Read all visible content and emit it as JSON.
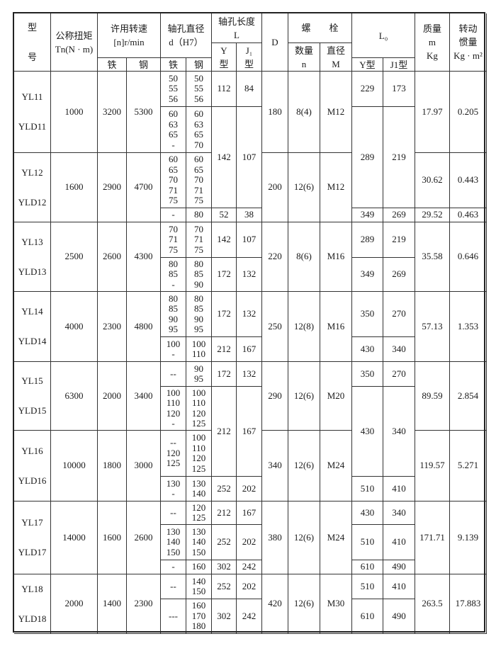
{
  "header": {
    "model": "型\n号",
    "torque": "公称扭矩\nTn(N · m)",
    "speed": "许用转速\n[n]r/min",
    "speed_iron": "铁",
    "speed_steel": "钢",
    "bore": "轴孔直径\nd（H7）",
    "bore_iron": "铁",
    "bore_steel": "钢",
    "length": "轴孔长度\nL",
    "length_Y": "Y\n型",
    "length_J1": "J₁\n型",
    "D": "D",
    "bolt": "螺　　栓",
    "bolt_n": "数量\nn",
    "bolt_M": "直径\nM",
    "L0": "L₀",
    "L0_Y": "Y型",
    "L0_J1": "J1型",
    "mass": "质量\nm\nKg",
    "inertia": "转动\n惯量\nKg · m²"
  },
  "models": [
    {
      "name": "YL11\nYLD11",
      "torque": "1000",
      "speed_iron": "3200",
      "speed_steel": "5300",
      "bore": [
        {
          "iron": "50\n55\n56",
          "steel": "50\n55\n56"
        },
        {
          "iron": "60\n63\n65\n-",
          "steel": "60\n63\n65\n70"
        }
      ],
      "L": [
        {
          "Y": "112",
          "J1": "84"
        },
        {
          "Y": "142",
          "J1": "107"
        }
      ],
      "D": "180",
      "bolt_n": "8(4)",
      "bolt_M": "M12",
      "L0": [
        {
          "Y": "229",
          "J1": "173"
        },
        {
          "Y": "289",
          "J1": "219"
        }
      ],
      "mass": [
        "17.97"
      ],
      "inertia": [
        "0.205"
      ]
    },
    {
      "name": "YL12\nYLD12",
      "torque": "1600",
      "speed_iron": "2900",
      "speed_steel": "4700",
      "bore": [
        {
          "iron": "60\n65\n70\n71\n75",
          "steel": "60\n65\n70\n71\n75"
        },
        {
          "iron": "-",
          "steel": "80"
        }
      ],
      "L": [
        {
          "Y": "52",
          "J1": "38"
        }
      ],
      "D": "200",
      "bolt_n": "12(6)",
      "bolt_M": "M12",
      "L0": [
        {
          "Y": "349",
          "J1": "269"
        }
      ],
      "mass": [
        "30.62",
        "29.52"
      ],
      "inertia": [
        "0.443",
        "0.463"
      ]
    },
    {
      "name": "YL13\nYLD13",
      "torque": "2500",
      "speed_iron": "2600",
      "speed_steel": "4300",
      "bore": [
        {
          "iron": "70\n71\n75",
          "steel": "70\n71\n75"
        },
        {
          "iron": "80\n85\n-",
          "steel": "80\n85\n90"
        }
      ],
      "L": [
        {
          "Y": "142",
          "J1": "107"
        },
        {
          "Y": "172",
          "J1": "132"
        }
      ],
      "D": "220",
      "bolt_n": "8(6)",
      "bolt_M": "M16",
      "L0": [
        {
          "Y": "289",
          "J1": "219"
        },
        {
          "Y": "349",
          "J1": "269"
        }
      ],
      "mass": [
        "35.58"
      ],
      "inertia": [
        "0.646"
      ]
    },
    {
      "name": "YL14\nYLD14",
      "torque": "4000",
      "speed_iron": "2300",
      "speed_steel": "4800",
      "bore": [
        {
          "iron": "80\n85\n90\n95",
          "steel": "80\n85\n90\n95"
        },
        {
          "iron": "100\n-",
          "steel": "100\n110"
        }
      ],
      "L": [
        {
          "Y": "172",
          "J1": "132"
        },
        {
          "Y": "212",
          "J1": "167"
        }
      ],
      "D": "250",
      "bolt_n": "12(8)",
      "bolt_M": "M16",
      "L0": [
        {
          "Y": "350",
          "J1": "270"
        },
        {
          "Y": "430",
          "J1": "340"
        }
      ],
      "mass": [
        "57.13"
      ],
      "inertia": [
        "1.353"
      ]
    },
    {
      "name": "YL15\nYLD15",
      "torque": "6300",
      "speed_iron": "2000",
      "speed_steel": "3400",
      "bore": [
        {
          "iron": "--",
          "steel": "90\n95"
        },
        {
          "iron": "100\n110\n120\n-",
          "steel": "100\n110\n120\n125"
        }
      ],
      "L": [
        {
          "Y": "172",
          "J1": "132"
        },
        {
          "Y": "212",
          "J1": "167"
        }
      ],
      "D": "290",
      "bolt_n": "12(6)",
      "bolt_M": "M20",
      "L0": [
        {
          "Y": "350",
          "J1": "270"
        },
        {
          "Y": "430",
          "J1": "340"
        }
      ],
      "mass": [
        "89.59"
      ],
      "inertia": [
        "2.854"
      ]
    },
    {
      "name": "YL16\nYLD16",
      "torque": "10000",
      "speed_iron": "1800",
      "speed_steel": "3000",
      "bore": [
        {
          "iron": "--\n120\n125",
          "steel": "100\n110\n120\n125"
        },
        {
          "iron": "130\n-",
          "steel": "130\n140"
        }
      ],
      "L": [
        {
          "Y": "252",
          "J1": "202"
        }
      ],
      "D": "340",
      "bolt_n": "12(6)",
      "bolt_M": "M24",
      "L0": [
        {
          "Y": "510",
          "J1": "410"
        }
      ],
      "mass": [
        "119.57"
      ],
      "inertia": [
        "5.271"
      ]
    },
    {
      "name": "YL17\nYLD17",
      "torque": "14000",
      "speed_iron": "1600",
      "speed_steel": "2600",
      "bore": [
        {
          "iron": "--",
          "steel": "120\n125"
        },
        {
          "iron": "130\n140\n150",
          "steel": "130\n140\n150"
        },
        {
          "iron": "-",
          "steel": "160"
        }
      ],
      "L": [
        {
          "Y": "212",
          "J1": "167"
        },
        {
          "Y": "252",
          "J1": "202"
        },
        {
          "Y": "302",
          "J1": "242"
        }
      ],
      "D": "380",
      "bolt_n": "12(6)",
      "bolt_M": "M24",
      "L0": [
        {
          "Y": "430",
          "J1": "340"
        },
        {
          "Y": "510",
          "J1": "410"
        },
        {
          "Y": "610",
          "J1": "490"
        }
      ],
      "mass": [
        "171.71"
      ],
      "inertia": [
        "9.139"
      ]
    },
    {
      "name": "YL18\nYLD18",
      "torque": "2000",
      "speed_iron": "1400",
      "speed_steel": "2300",
      "bore": [
        {
          "iron": "--",
          "steel": "140\n150"
        },
        {
          "iron": "---",
          "steel": "160\n170\n180"
        }
      ],
      "L": [
        {
          "Y": "252",
          "J1": "202"
        },
        {
          "Y": "302",
          "J1": "242"
        }
      ],
      "D": "420",
      "bolt_n": "12(6)",
      "bolt_M": "M30",
      "L0": [
        {
          "Y": "510",
          "J1": "410"
        },
        {
          "Y": "610",
          "J1": "490"
        }
      ],
      "mass": [
        "263.5"
      ],
      "inertia": [
        "17.883"
      ]
    }
  ]
}
